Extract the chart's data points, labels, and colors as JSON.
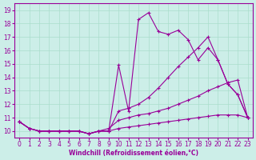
{
  "xlabel": "Windchill (Refroidissement éolien,°C)",
  "x": [
    0,
    1,
    2,
    3,
    4,
    5,
    6,
    7,
    8,
    9,
    10,
    11,
    12,
    13,
    14,
    15,
    16,
    17,
    18,
    19,
    20,
    21,
    22,
    23
  ],
  "line_top": [
    10.7,
    10.2,
    10.0,
    10.0,
    10.0,
    10.0,
    10.0,
    9.8,
    10.0,
    10.0,
    14.9,
    11.5,
    18.3,
    18.8,
    17.4,
    17.2,
    17.5,
    16.8,
    15.3,
    16.2,
    15.3,
    13.5,
    12.7,
    11.0
  ],
  "line_mid_hi": [
    10.7,
    10.2,
    10.0,
    10.0,
    10.0,
    10.0,
    10.0,
    9.8,
    10.0,
    10.0,
    11.5,
    11.7,
    12.0,
    12.5,
    13.2,
    14.0,
    14.8,
    15.5,
    16.2,
    17.0,
    15.3,
    13.5,
    12.7,
    11.0
  ],
  "line_mid_lo": [
    10.7,
    10.2,
    10.0,
    10.0,
    10.0,
    10.0,
    10.0,
    9.8,
    10.0,
    10.2,
    10.8,
    11.0,
    11.2,
    11.3,
    11.5,
    11.7,
    12.0,
    12.3,
    12.6,
    13.0,
    13.3,
    13.6,
    13.8,
    11.0
  ],
  "line_bot": [
    10.7,
    10.2,
    10.0,
    10.0,
    10.0,
    10.0,
    10.0,
    9.8,
    10.0,
    10.0,
    10.2,
    10.3,
    10.4,
    10.5,
    10.6,
    10.7,
    10.8,
    10.9,
    11.0,
    11.1,
    11.2,
    11.2,
    11.2,
    11.0
  ],
  "line_color": "#990099",
  "bg_color": "#cceee8",
  "grid_color": "#aaddcc",
  "ylim": [
    9.5,
    19.5
  ],
  "xlim": [
    -0.5,
    23.5
  ],
  "yticks": [
    10,
    11,
    12,
    13,
    14,
    15,
    16,
    17,
    18,
    19
  ],
  "xticks": [
    0,
    1,
    2,
    3,
    4,
    5,
    6,
    7,
    8,
    9,
    10,
    11,
    12,
    13,
    14,
    15,
    16,
    17,
    18,
    19,
    20,
    21,
    22,
    23
  ]
}
